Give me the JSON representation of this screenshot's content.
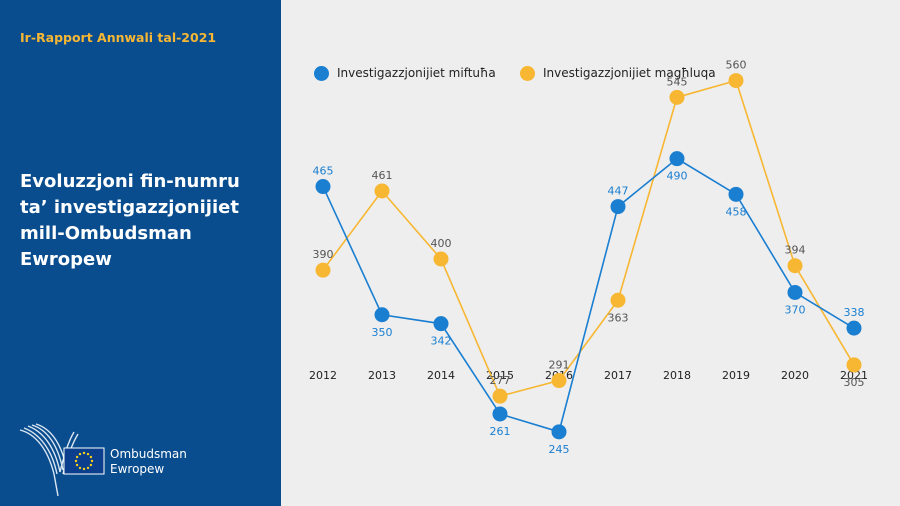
{
  "sidebar": {
    "report_title": "Ir-Rapport Annwali tal-2021",
    "heading_lines": [
      "Evoluzzjoni fin-numru",
      "ta’ investigazzjonijiet",
      "mill-Ombudsman",
      "Ewropew"
    ],
    "logo": {
      "line1": "Ombudsman",
      "line2": "Ewropew"
    }
  },
  "colors": {
    "panel_bg": "#0a4d8f",
    "accent_yellow": "#f7b733",
    "series_open": "#1a7ed1",
    "series_closed": "#f7b733",
    "chart_bg": "#eeeeee"
  },
  "chart_data": {
    "type": "line",
    "title": "Evoluzzjoni fin-numru ta’ investigazzjonijiet mill-Ombudsman Ewropew",
    "categories": [
      "2012",
      "2013",
      "2014",
      "2015",
      "2016",
      "2017",
      "2018",
      "2019",
      "2020",
      "2021"
    ],
    "series": [
      {
        "name": "Investigazzjonijiet miftuħa",
        "color": "#1a7ed1",
        "values": [
          465,
          350,
          342,
          261,
          245,
          447,
          490,
          458,
          370,
          338
        ]
      },
      {
        "name": "Investigazzjonijiet magħluqa",
        "color": "#f7b733",
        "values": [
          390,
          461,
          400,
          277,
          291,
          363,
          545,
          560,
          394,
          305
        ]
      }
    ],
    "label_positions": [
      [
        "above",
        "above"
      ],
      [
        "below",
        "above"
      ],
      [
        "below",
        "above"
      ],
      [
        "below",
        "above"
      ],
      [
        "below",
        "above"
      ],
      [
        "above",
        "below"
      ],
      [
        "below",
        "above"
      ],
      [
        "below",
        "above"
      ],
      [
        "below",
        "above"
      ],
      [
        "above",
        "below"
      ]
    ],
    "ylim": [
      200,
      600
    ],
    "xlabel": "",
    "ylabel": "",
    "grid": false,
    "legend_position": "top-left"
  }
}
